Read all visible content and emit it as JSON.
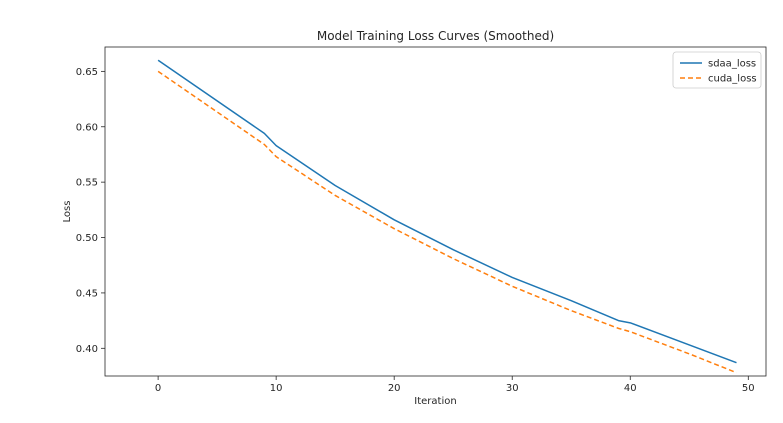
{
  "chart_data": {
    "type": "line",
    "title": "Model Training Loss Curves (Smoothed)",
    "xlabel": "Iteration",
    "ylabel": "Loss",
    "xlim": [
      -4.5,
      51.5
    ],
    "ylim": [
      0.375,
      0.672
    ],
    "xticks": [
      0,
      10,
      20,
      30,
      40,
      50
    ],
    "xtick_labels": [
      "0",
      "10",
      "20",
      "30",
      "40",
      "50"
    ],
    "yticks": [
      0.4,
      0.45,
      0.5,
      0.55,
      0.6,
      0.65
    ],
    "ytick_labels": [
      "0.40",
      "0.45",
      "0.50",
      "0.55",
      "0.60",
      "0.65"
    ],
    "grid": false,
    "legend_position": "top-right",
    "series": [
      {
        "name": "sdaa_loss",
        "color": "#1f77b4",
        "style": "solid",
        "x": [
          0,
          9,
          10,
          15,
          20,
          25,
          30,
          35,
          39,
          40,
          45,
          49
        ],
        "y": [
          0.66,
          0.594,
          0.583,
          0.547,
          0.516,
          0.489,
          0.464,
          0.443,
          0.425,
          0.423,
          0.403,
          0.387
        ]
      },
      {
        "name": "cuda_loss",
        "color": "#ff7f0e",
        "style": "dashed",
        "x": [
          0,
          9,
          10,
          15,
          20,
          25,
          30,
          35,
          39,
          40,
          45,
          49
        ],
        "y": [
          0.65,
          0.584,
          0.573,
          0.538,
          0.508,
          0.481,
          0.456,
          0.434,
          0.418,
          0.415,
          0.395,
          0.378
        ]
      }
    ]
  }
}
